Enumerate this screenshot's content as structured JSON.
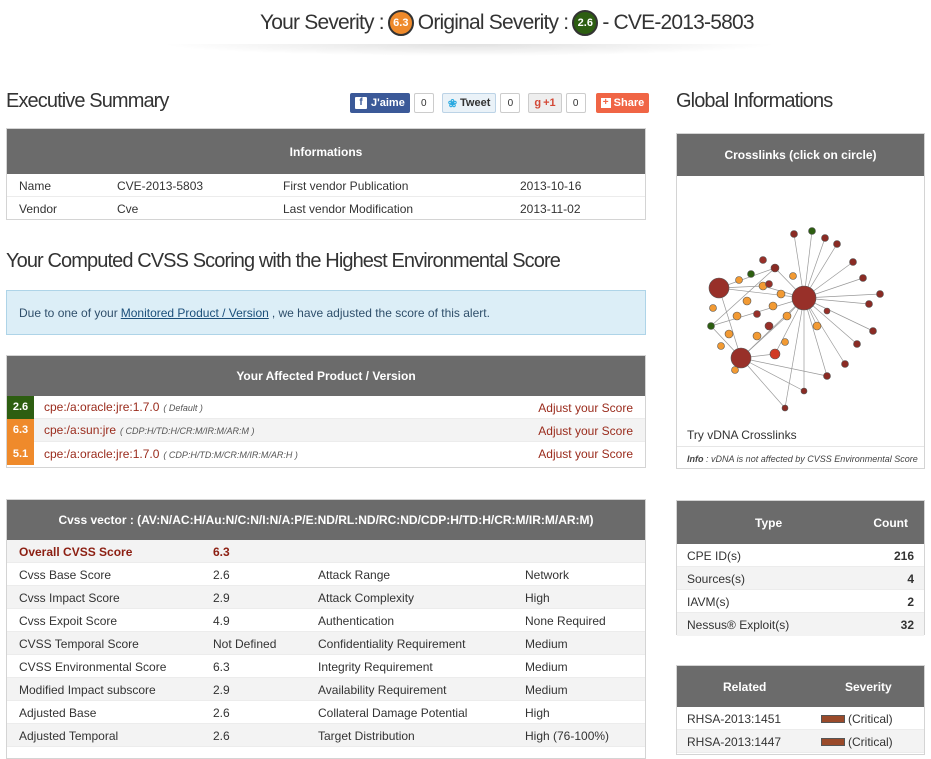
{
  "header": {
    "your_severity_label": "Your Severity :",
    "your_severity_value": "6.3",
    "original_severity_label": "Original Severity :",
    "original_severity_value": "2.6",
    "cve_title": "- CVE-2013-5803"
  },
  "colors": {
    "orange": "#ef8a2b",
    "green": "#2d5e11",
    "gray_header": "#6b6b6b",
    "dark_red": "#8c1f12"
  },
  "executive_summary": {
    "title": "Executive Summary",
    "social": {
      "facebook_label": "J'aime",
      "facebook_count": "0",
      "tweet_label": "Tweet",
      "tweet_count": "0",
      "gplus_label": "+1",
      "gplus_count": "0",
      "share_label": "Share"
    },
    "informations_header": "Informations",
    "rows": [
      {
        "k1": "Name",
        "v1": "CVE-2013-5803",
        "k2": "First vendor Publication",
        "v2": "2013-10-16"
      },
      {
        "k1": "Vendor",
        "v1": "Cve",
        "k2": "Last vendor Modification",
        "v2": "2013-11-02"
      }
    ]
  },
  "cvss_section": {
    "title": "Your Computed CVSS Scoring with the Highest Environmental Score",
    "alert_prefix": "Due to one of your",
    "alert_link": "Monitored Product / Version",
    "alert_suffix": ", we have adjusted the score of this alert."
  },
  "affected": {
    "header": "Your Affected Product / Version",
    "items": [
      {
        "score": "2.6",
        "cpe": "cpe:/a:oracle:jre:1.7.0",
        "note": "( Default )",
        "action": "Adjust your Score"
      },
      {
        "score": "6.3",
        "cpe": "cpe:/a:sun:jre",
        "note": "( CDP:H/TD:H/CR:M/IR:M/AR:M )",
        "action": "Adjust your Score"
      },
      {
        "score": "5.1",
        "cpe": "cpe:/a:oracle:jre:1.7.0",
        "note": "( CDP:H/TD:M/CR:M/IR:M/AR:H )",
        "action": "Adjust your Score"
      }
    ]
  },
  "cvss_vector": {
    "header": "Cvss vector : (AV:N/AC:H/Au:N/C:N/I:N/A:P/E:ND/RL:ND/RC:ND/CDP:H/TD:H/CR:M/IR:M/AR:M)",
    "overall_label": "Overall CVSS Score",
    "overall_value": "6.3",
    "rows": [
      {
        "k1": "Cvss Base Score",
        "v1": "2.6",
        "k2": "Attack Range",
        "v2": "Network"
      },
      {
        "k1": "Cvss Impact Score",
        "v1": "2.9",
        "k2": "Attack Complexity",
        "v2": "High"
      },
      {
        "k1": "Cvss Expoit Score",
        "v1": "4.9",
        "k2": "Authentication",
        "v2": "None Required"
      },
      {
        "k1": "CVSS Temporal Score",
        "v1": "Not Defined",
        "k2": "Confidentiality Requirement",
        "v2": "Medium"
      },
      {
        "k1": "CVSS Environmental Score",
        "v1": "6.3",
        "k2": "Integrity Requirement",
        "v2": "Medium"
      },
      {
        "k1": "Modified Impact subscore",
        "v1": "2.9",
        "k2": "Availability Requirement",
        "v2": "Medium"
      },
      {
        "k1": "Adjusted Base",
        "v1": "2.6",
        "k2": "Collateral Damage Potential",
        "v2": "High"
      },
      {
        "k1": "Adjusted Temporal",
        "v1": "2.6",
        "k2": "Target Distribution",
        "v2": "High (76-100%)"
      }
    ]
  },
  "global": {
    "title": "Global Informations",
    "crosslinks_header": "Crosslinks (click on circle)",
    "crosslinks_caption": "Try vDNA Crosslinks",
    "crosslinks_info_label": "Info",
    "crosslinks_info_text": ": vDNA is not affected by CVSS Environmental Score",
    "type_table": {
      "col1": "Type",
      "col2": "Count",
      "rows": [
        {
          "type": "CPE ID(s)",
          "count": "216"
        },
        {
          "type": "Sources(s)",
          "count": "4"
        },
        {
          "type": "IAVM(s)",
          "count": "2"
        },
        {
          "type": "Nessus® Exploit(s)",
          "count": "32"
        }
      ]
    },
    "related_table": {
      "col1": "Related",
      "col2": "Severity",
      "rows": [
        {
          "related": "RHSA-2013:1451",
          "severity": "(Critical)"
        },
        {
          "related": "RHSA-2013:1447",
          "severity": "(Critical)"
        }
      ]
    }
  }
}
